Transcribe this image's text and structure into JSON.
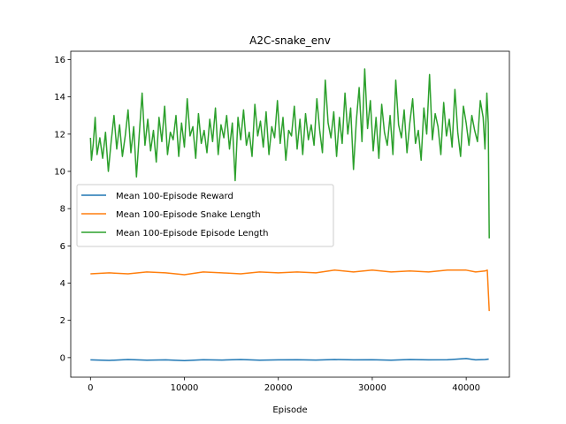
{
  "chart_data": {
    "type": "line",
    "title": "A2C-snake_env",
    "xlabel": "Episode",
    "ylabel": "",
    "xlim": [
      -2100,
      44600
    ],
    "ylim": [
      -1.05,
      16.45
    ],
    "xticks": [
      0,
      10000,
      20000,
      30000,
      40000
    ],
    "yticks": [
      0,
      2,
      4,
      6,
      8,
      10,
      12,
      14,
      16
    ],
    "grid": false,
    "legend": {
      "placement": "center-left"
    },
    "series": [
      {
        "name": "Mean 100-Episode Reward",
        "color": "#1f77b4",
        "x": [
          0,
          2000,
          4000,
          6000,
          8000,
          10000,
          12000,
          14000,
          16000,
          18000,
          20000,
          22000,
          24000,
          26000,
          28000,
          30000,
          32000,
          34000,
          36000,
          38000,
          40000,
          41000,
          42000,
          42400
        ],
        "y": [
          -0.12,
          -0.15,
          -0.1,
          -0.14,
          -0.12,
          -0.16,
          -0.11,
          -0.13,
          -0.1,
          -0.14,
          -0.12,
          -0.11,
          -0.13,
          -0.1,
          -0.12,
          -0.11,
          -0.14,
          -0.1,
          -0.12,
          -0.11,
          -0.05,
          -0.12,
          -0.1,
          -0.08
        ]
      },
      {
        "name": "Mean 100-Episode Snake Length",
        "color": "#ff7f0e",
        "x": [
          0,
          2000,
          4000,
          6000,
          8000,
          10000,
          12000,
          14000,
          16000,
          18000,
          20000,
          22000,
          24000,
          26000,
          28000,
          30000,
          32000,
          34000,
          36000,
          38000,
          40000,
          41000,
          42000,
          42250,
          42450
        ],
        "y": [
          4.5,
          4.55,
          4.5,
          4.6,
          4.55,
          4.45,
          4.6,
          4.55,
          4.5,
          4.6,
          4.55,
          4.6,
          4.55,
          4.7,
          4.6,
          4.7,
          4.6,
          4.65,
          4.6,
          4.7,
          4.7,
          4.6,
          4.65,
          4.7,
          2.5
        ]
      },
      {
        "name": "Mean 100-Episode Episode Length",
        "color": "#2ca02c",
        "x": [
          0,
          100,
          300,
          500,
          700,
          1000,
          1300,
          1600,
          1900,
          2200,
          2500,
          2800,
          3100,
          3400,
          3700,
          4000,
          4300,
          4600,
          4900,
          5200,
          5500,
          5800,
          6100,
          6400,
          6700,
          7000,
          7300,
          7600,
          7900,
          8200,
          8500,
          8800,
          9100,
          9400,
          9700,
          10000,
          10300,
          10600,
          10900,
          11200,
          11500,
          11800,
          12100,
          12400,
          12700,
          13000,
          13300,
          13600,
          13900,
          14200,
          14500,
          14800,
          15100,
          15400,
          15700,
          16000,
          16300,
          16600,
          16900,
          17200,
          17500,
          17800,
          18100,
          18400,
          18700,
          19000,
          19300,
          19600,
          19900,
          20200,
          20500,
          20800,
          21100,
          21400,
          21700,
          22000,
          22300,
          22600,
          22900,
          23200,
          23500,
          23800,
          24100,
          24400,
          24700,
          25000,
          25300,
          25600,
          25900,
          26200,
          26500,
          26800,
          27100,
          27400,
          27700,
          28000,
          28300,
          28600,
          28900,
          29200,
          29500,
          29800,
          30100,
          30400,
          30700,
          31000,
          31300,
          31600,
          31900,
          32200,
          32500,
          32800,
          33100,
          33400,
          33700,
          34000,
          34300,
          34600,
          34900,
          35200,
          35500,
          35800,
          36100,
          36400,
          36700,
          37000,
          37300,
          37600,
          37900,
          38200,
          38500,
          38800,
          39100,
          39400,
          39700,
          40000,
          40300,
          40600,
          40900,
          41200,
          41500,
          41800,
          42000,
          42200,
          42350,
          42450
        ],
        "y": [
          11.8,
          10.6,
          11.5,
          12.9,
          10.9,
          11.8,
          10.7,
          12.1,
          10.0,
          11.6,
          13.0,
          11.2,
          12.5,
          10.8,
          11.9,
          13.3,
          11.0,
          12.4,
          9.7,
          12.0,
          14.2,
          11.4,
          12.8,
          11.1,
          12.2,
          10.5,
          12.9,
          11.6,
          13.5,
          10.9,
          12.1,
          11.7,
          13.0,
          10.8,
          12.6,
          11.3,
          13.9,
          11.9,
          12.4,
          10.7,
          13.1,
          11.5,
          12.2,
          11.0,
          12.8,
          11.6,
          13.4,
          10.9,
          12.5,
          11.8,
          13.0,
          11.2,
          12.6,
          9.5,
          12.9,
          11.7,
          13.3,
          11.4,
          12.1,
          10.8,
          13.6,
          11.9,
          12.7,
          11.3,
          13.2,
          10.9,
          12.4,
          11.8,
          13.8,
          11.5,
          12.9,
          10.6,
          12.2,
          11.9,
          13.5,
          11.2,
          12.8,
          10.9,
          13.1,
          11.7,
          12.5,
          11.4,
          13.9,
          12.2,
          11.0,
          14.9,
          12.6,
          11.8,
          13.2,
          10.8,
          12.9,
          11.5,
          14.2,
          12.0,
          13.4,
          10.1,
          12.7,
          14.5,
          11.6,
          15.5,
          12.3,
          13.8,
          11.1,
          12.9,
          10.7,
          13.6,
          12.1,
          11.4,
          13.0,
          10.9,
          14.9,
          12.5,
          11.8,
          13.3,
          11.0,
          12.6,
          13.9,
          11.5,
          12.2,
          10.6,
          13.4,
          12.0,
          15.2,
          11.7,
          13.1,
          12.4,
          10.9,
          13.7,
          11.9,
          12.8,
          11.3,
          14.4,
          12.1,
          10.8,
          13.5,
          12.6,
          11.4,
          13.0,
          12.2,
          11.6,
          13.8,
          12.9,
          11.2,
          14.2,
          12.6,
          6.4
        ]
      }
    ]
  }
}
